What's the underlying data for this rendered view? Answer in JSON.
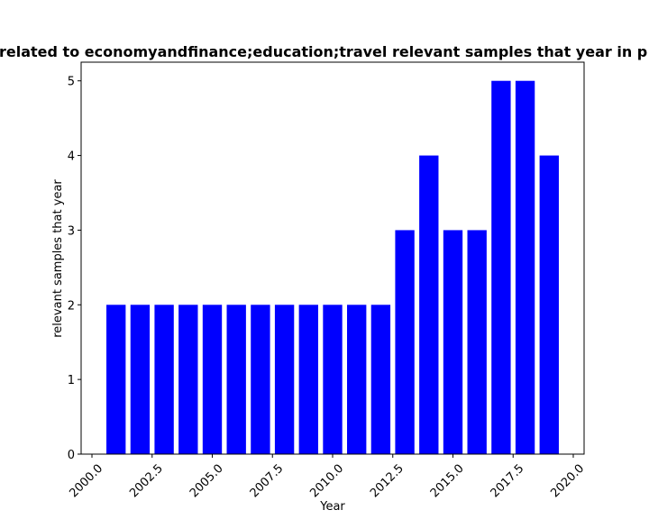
{
  "chart_data": {
    "type": "bar",
    "title": "related to economyandfinance;education;travel relevant samples that year in p",
    "xlabel": "Year",
    "ylabel": "relevant samples that year",
    "x": [
      2001,
      2002,
      2003,
      2004,
      2005,
      2006,
      2007,
      2008,
      2009,
      2010,
      2011,
      2012,
      2013,
      2014,
      2015,
      2016,
      2017,
      2018,
      2019
    ],
    "values": [
      2,
      2,
      2,
      2,
      2,
      2,
      2,
      2,
      2,
      2,
      2,
      2,
      3,
      4,
      3,
      3,
      5,
      5,
      4
    ],
    "xlim": [
      1999.55,
      2020.45
    ],
    "ylim": [
      0,
      5.25
    ],
    "xticks": [
      "2000.0",
      "2002.5",
      "2005.0",
      "2007.5",
      "2010.0",
      "2012.5",
      "2015.0",
      "2017.5",
      "2020.0"
    ],
    "yticks": [
      "0",
      "1",
      "2",
      "3",
      "4",
      "5"
    ],
    "bar_color": "#0000ff",
    "grid": false
  }
}
